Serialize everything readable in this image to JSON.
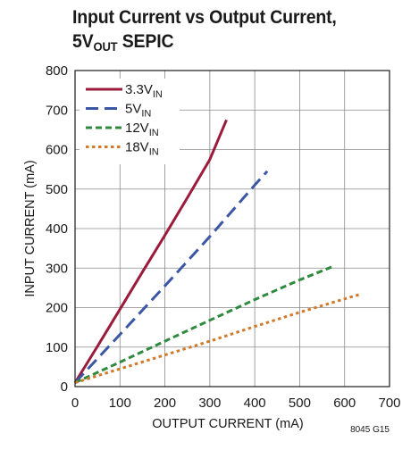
{
  "title_line1": "Input Current vs Output Current,",
  "title_line2_main": "5V",
  "title_line2_sub": "OUT",
  "title_line2_rest": " SEPIC",
  "figure_code": "8045 G15",
  "chart_data": {
    "type": "line",
    "title": "Input Current vs Output Current, 5VOUT SEPIC",
    "xlabel": "OUTPUT CURRENT (mA)",
    "ylabel": "INPUT CURRENT (mA)",
    "xlim": [
      0,
      700
    ],
    "ylim": [
      0,
      800
    ],
    "x_ticks": [
      "0",
      "100",
      "200",
      "300",
      "400",
      "500",
      "600",
      "700"
    ],
    "y_ticks": [
      "0",
      "100",
      "200",
      "300",
      "400",
      "500",
      "600",
      "700",
      "800"
    ],
    "grid": true,
    "legend_position": "top-left",
    "series": [
      {
        "name": "3.3V",
        "name_sub": "IN",
        "color": "#9b1b3a",
        "dash": "solid",
        "x": [
          0,
          50,
          100,
          150,
          200,
          250,
          300,
          337
        ],
        "y": [
          10,
          102,
          196,
          290,
          383,
          478,
          575,
          675
        ]
      },
      {
        "name": "5V",
        "name_sub": "IN",
        "color": "#3a56a5",
        "dash": "longdash",
        "x": [
          0,
          100,
          200,
          300,
          400,
          428
        ],
        "y": [
          10,
          132,
          255,
          380,
          510,
          545
        ]
      },
      {
        "name": "12V",
        "name_sub": "IN",
        "color": "#2f8a3e",
        "dash": "dash",
        "x": [
          0,
          100,
          200,
          300,
          400,
          500,
          578
        ],
        "y": [
          10,
          62,
          115,
          168,
          220,
          270,
          306
        ]
      },
      {
        "name": "18V",
        "name_sub": "IN",
        "color": "#d07a2c",
        "dash": "dot",
        "x": [
          0,
          100,
          200,
          300,
          400,
          500,
          633
        ],
        "y": [
          10,
          45,
          80,
          115,
          152,
          188,
          233
        ]
      }
    ]
  }
}
